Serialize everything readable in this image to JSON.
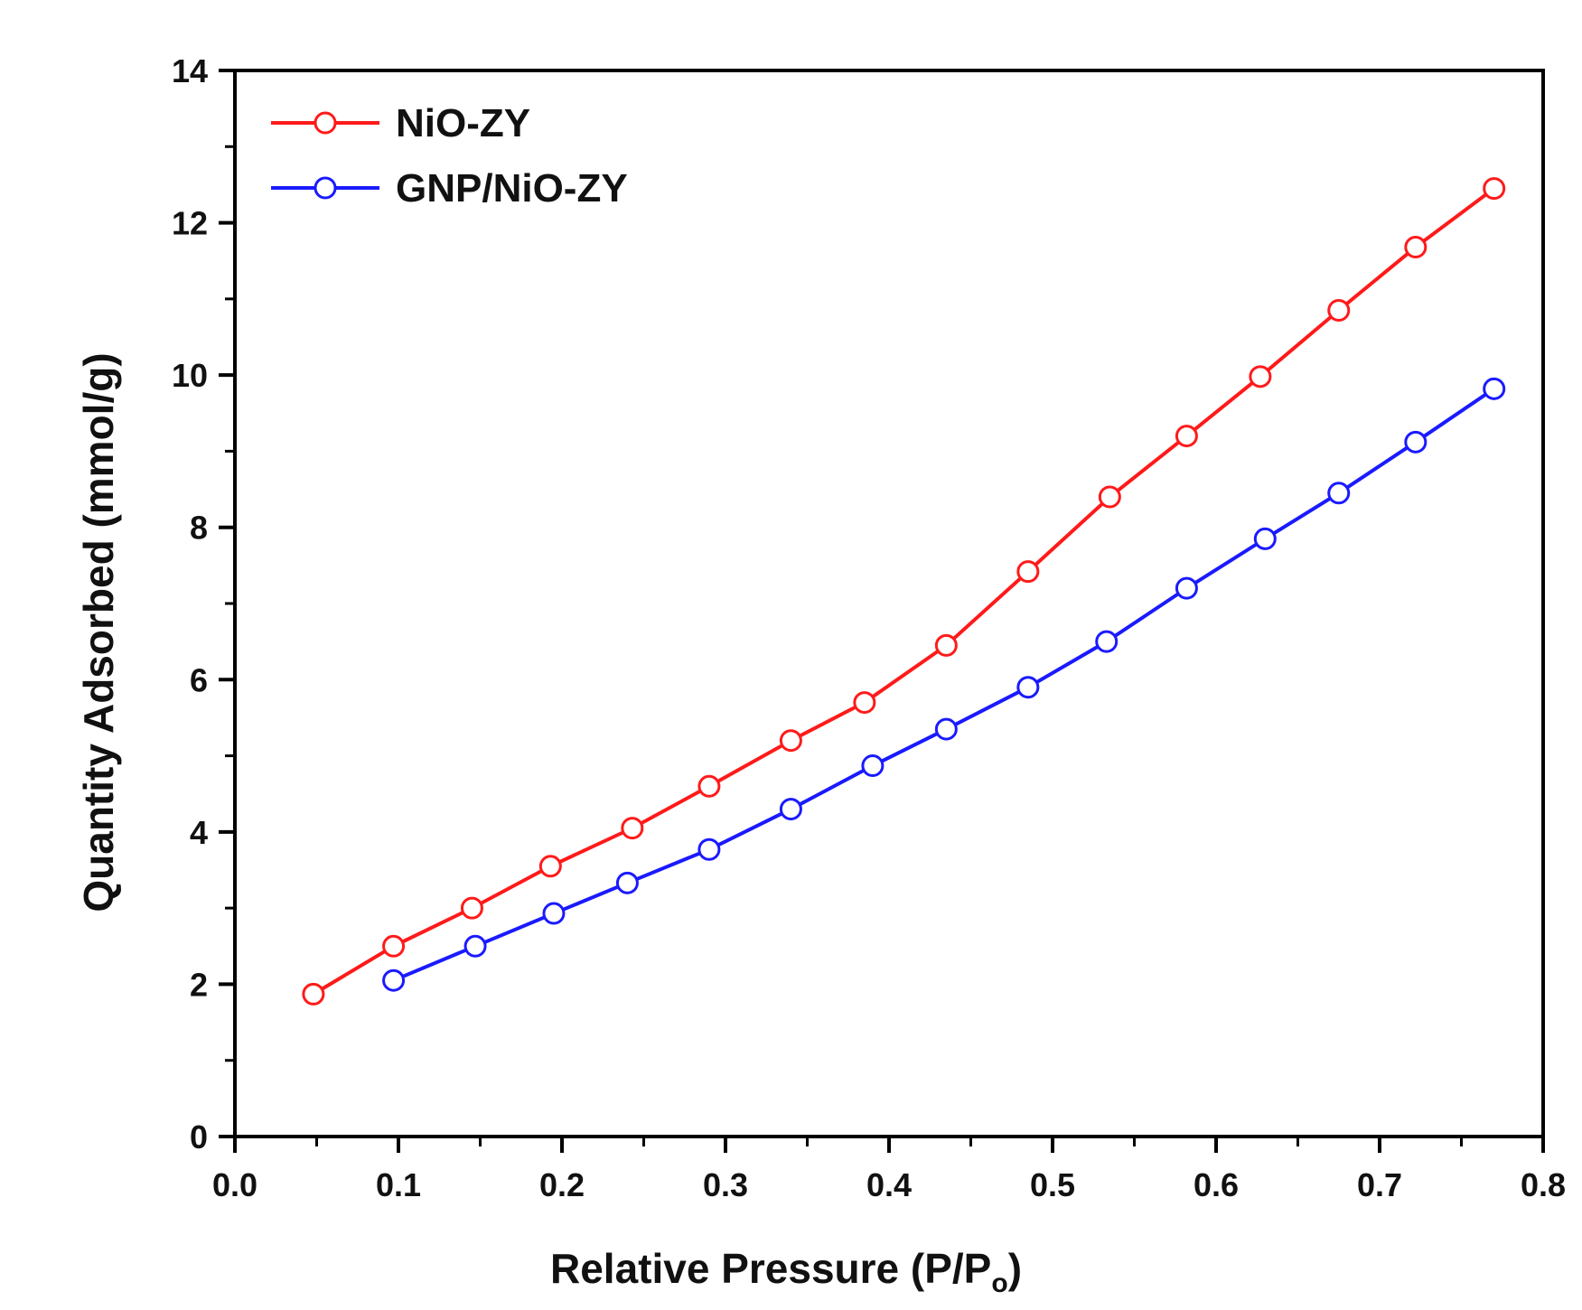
{
  "chart_data": {
    "type": "line",
    "title": "",
    "xlabel_main": "Relative Pressure (P/P",
    "xlabel_sub": "o",
    "xlabel_close": ")",
    "ylabel": "Quantity Adsorbed (mmol/g)",
    "xlim": [
      0.0,
      0.8
    ],
    "ylim": [
      0,
      14
    ],
    "x_ticks": [
      "0.0",
      "0.1",
      "0.2",
      "0.3",
      "0.4",
      "0.5",
      "0.6",
      "0.7",
      "0.8"
    ],
    "y_ticks": [
      "0",
      "2",
      "4",
      "6",
      "8",
      "10",
      "12",
      "14"
    ],
    "grid": false,
    "legend_position": "top-left",
    "series": [
      {
        "name": "NiO-ZY",
        "color": "#ff1a1a",
        "marker": "open-circle",
        "x": [
          0.048,
          0.097,
          0.145,
          0.193,
          0.243,
          0.29,
          0.34,
          0.385,
          0.435,
          0.485,
          0.535,
          0.582,
          0.627,
          0.675,
          0.722,
          0.77
        ],
        "y": [
          1.87,
          2.5,
          3.0,
          3.55,
          4.05,
          4.6,
          5.2,
          5.7,
          6.45,
          7.42,
          8.4,
          9.2,
          9.98,
          10.85,
          11.68,
          12.45
        ]
      },
      {
        "name": "GNP/NiO-ZY",
        "color": "#1a1aff",
        "marker": "open-circle",
        "x": [
          0.097,
          0.147,
          0.195,
          0.24,
          0.29,
          0.34,
          0.39,
          0.435,
          0.485,
          0.533,
          0.582,
          0.63,
          0.675,
          0.722,
          0.77
        ],
        "y": [
          2.05,
          2.5,
          2.93,
          3.33,
          3.77,
          4.3,
          4.87,
          5.35,
          5.9,
          6.5,
          7.2,
          7.85,
          8.45,
          9.12,
          9.82
        ]
      }
    ]
  }
}
